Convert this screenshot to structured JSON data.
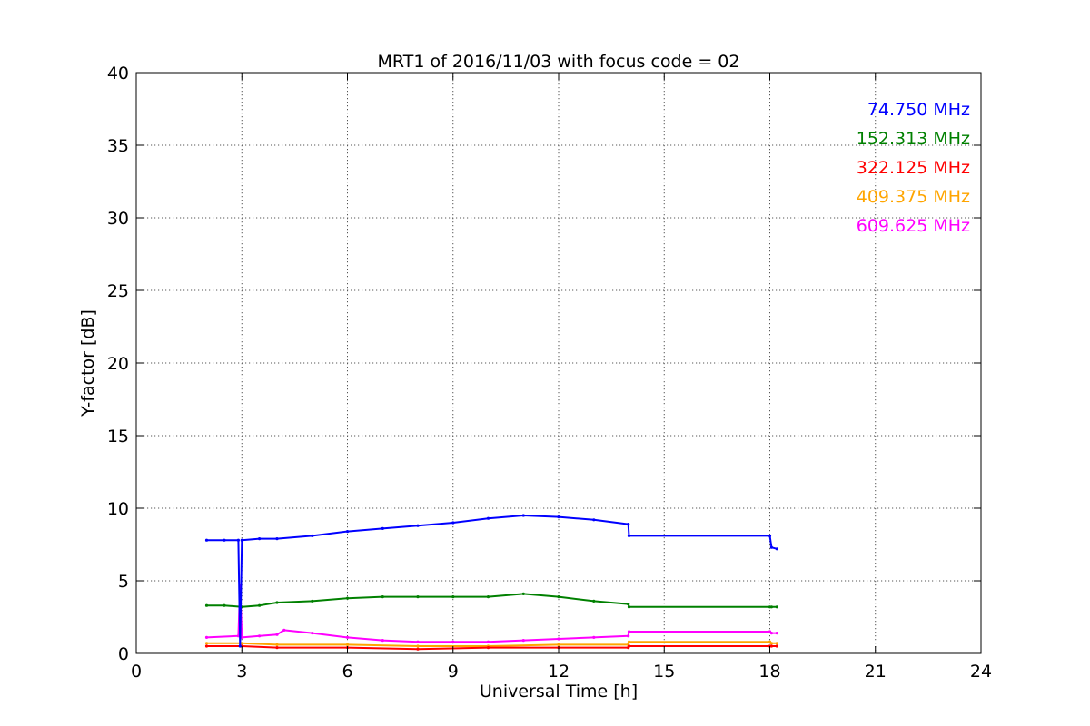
{
  "chart_data": {
    "type": "line",
    "title": "MRT1 of 2016/11/03 with focus code = 02",
    "xlabel": "Universal Time [h]",
    "ylabel": "Y-factor [dB]",
    "xlim": [
      0,
      24
    ],
    "ylim": [
      0,
      40
    ],
    "xticks": [
      0,
      3,
      6,
      9,
      12,
      15,
      18,
      21,
      24
    ],
    "yticks": [
      0,
      5,
      10,
      15,
      20,
      25,
      30,
      35,
      40
    ],
    "grid": true,
    "legend_placement": "top-right",
    "series": [
      {
        "name": "74.750 MHz",
        "color": "#0000ff",
        "x": [
          2.0,
          2.5,
          2.9,
          2.95,
          3.0,
          3.5,
          4.0,
          5.0,
          6.0,
          7.0,
          8.0,
          9.0,
          10.0,
          11.0,
          12.0,
          13.0,
          13.98,
          14.0,
          18.0,
          18.05,
          18.2
        ],
        "y": [
          7.8,
          7.8,
          7.8,
          0.5,
          7.8,
          7.9,
          7.9,
          8.1,
          8.4,
          8.6,
          8.8,
          9.0,
          9.3,
          9.5,
          9.4,
          9.2,
          8.9,
          8.1,
          8.1,
          7.3,
          7.2
        ]
      },
      {
        "name": "152.313 MHz",
        "color": "#008000",
        "x": [
          2.0,
          2.5,
          3.0,
          3.5,
          4.0,
          5.0,
          6.0,
          7.0,
          8.0,
          9.0,
          10.0,
          11.0,
          12.0,
          13.0,
          13.98,
          14.0,
          18.0,
          18.05,
          18.2
        ],
        "y": [
          3.3,
          3.3,
          3.2,
          3.3,
          3.5,
          3.6,
          3.8,
          3.9,
          3.9,
          3.9,
          3.9,
          4.1,
          3.9,
          3.6,
          3.4,
          3.2,
          3.2,
          3.2,
          3.2
        ]
      },
      {
        "name": "322.125 MHz",
        "color": "#ff0000",
        "x": [
          2.0,
          3.0,
          4.0,
          6.0,
          8.0,
          10.0,
          12.0,
          13.98,
          14.0,
          18.0,
          18.05,
          18.2
        ],
        "y": [
          0.5,
          0.5,
          0.4,
          0.4,
          0.3,
          0.4,
          0.4,
          0.4,
          0.5,
          0.5,
          0.5,
          0.5
        ]
      },
      {
        "name": "409.375 MHz",
        "color": "#ffa500",
        "x": [
          2.0,
          3.0,
          4.0,
          6.0,
          8.0,
          10.0,
          12.0,
          13.98,
          14.0,
          18.0,
          18.05,
          18.2
        ],
        "y": [
          0.7,
          0.7,
          0.6,
          0.6,
          0.5,
          0.5,
          0.6,
          0.6,
          0.8,
          0.8,
          0.7,
          0.7
        ]
      },
      {
        "name": "609.625 MHz",
        "color": "#ff00ff",
        "x": [
          2.0,
          2.9,
          2.95,
          3.0,
          3.5,
          4.0,
          4.2,
          5.0,
          6.0,
          7.0,
          8.0,
          9.0,
          10.0,
          11.0,
          12.0,
          13.0,
          13.98,
          14.0,
          18.0,
          18.05,
          18.2
        ],
        "y": [
          1.1,
          1.2,
          4.7,
          1.1,
          1.2,
          1.3,
          1.6,
          1.4,
          1.1,
          0.9,
          0.8,
          0.8,
          0.8,
          0.9,
          1.0,
          1.1,
          1.2,
          1.5,
          1.5,
          1.4,
          1.4
        ]
      }
    ]
  }
}
